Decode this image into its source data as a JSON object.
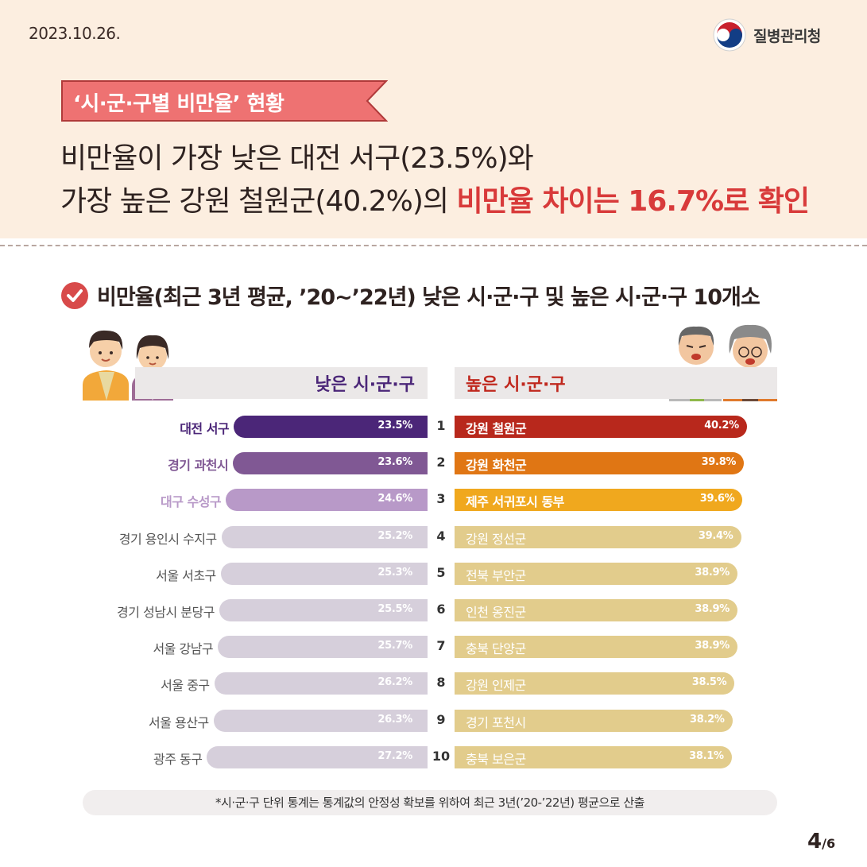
{
  "date": "2023.10.26.",
  "logo": {
    "text": "질병관리청",
    "icon": "korea-taegeuk-logo"
  },
  "tag": "‘시·군·구별 비만율’ 현황",
  "headline": {
    "line1": "비만율이 가장 낮은 대전 서구(23.5%)와",
    "line2_plain": "가장 높은 강원 철원군(40.2%)의 ",
    "line2_highlight": "비만율 차이는 16.7%로 확인"
  },
  "section_title": "비만율(최근 3년 평균, ’20~’22년) 낮은 시·군·구 및 높은 시·군·구 10개소",
  "headers": {
    "low": "낮은 시·군·구",
    "high": "높은 시·군·구"
  },
  "colors": {
    "low_ranks": [
      "#4b2678",
      "#805894",
      "#b899c8",
      "#d6cfdb"
    ],
    "high_ranks": [
      "#b8281c",
      "#e07614",
      "#f0a81e",
      "#e2cc8c"
    ],
    "highlight_red": "#d83a3a"
  },
  "chart_data": {
    "type": "bar",
    "ranks": [
      "1",
      "2",
      "3",
      "4",
      "5",
      "6",
      "7",
      "8",
      "9",
      "10"
    ],
    "series": [
      {
        "name": "낮은 시·군·구",
        "categories": [
          "대전 서구",
          "경기 과천시",
          "대구 수성구",
          "경기 용인시 수지구",
          "서울 서초구",
          "경기 성남시 분당구",
          "서울 강남구",
          "서울 중구",
          "서울 용산구",
          "광주 동구"
        ],
        "values": [
          23.5,
          23.6,
          24.6,
          25.2,
          25.3,
          25.5,
          25.7,
          26.2,
          26.3,
          27.2
        ],
        "labels": [
          "23.5%",
          "23.6%",
          "24.6%",
          "25.2%",
          "25.3%",
          "25.5%",
          "25.7%",
          "26.2%",
          "26.3%",
          "27.2%"
        ]
      },
      {
        "name": "높은 시·군·구",
        "categories": [
          "강원 철원군",
          "강원 화천군",
          "제주 서귀포시 동부",
          "강원 정선군",
          "전북 부안군",
          "인천 옹진군",
          "충북 단양군",
          "강원 인제군",
          "경기 포천시",
          "충북 보은군"
        ],
        "values": [
          40.2,
          39.8,
          39.6,
          39.4,
          38.9,
          38.9,
          38.9,
          38.5,
          38.2,
          38.1
        ],
        "labels": [
          "40.2%",
          "39.8%",
          "39.6%",
          "39.4%",
          "38.9%",
          "38.9%",
          "38.9%",
          "38.5%",
          "38.2%",
          "38.1%"
        ]
      }
    ]
  },
  "footnote": "*시·군·구 단위 통계는 통계값의 안정성 확보를 위하여 최근 3년(’20-’22년) 평균으로 산출",
  "page": {
    "current": "4",
    "total": "/6"
  }
}
